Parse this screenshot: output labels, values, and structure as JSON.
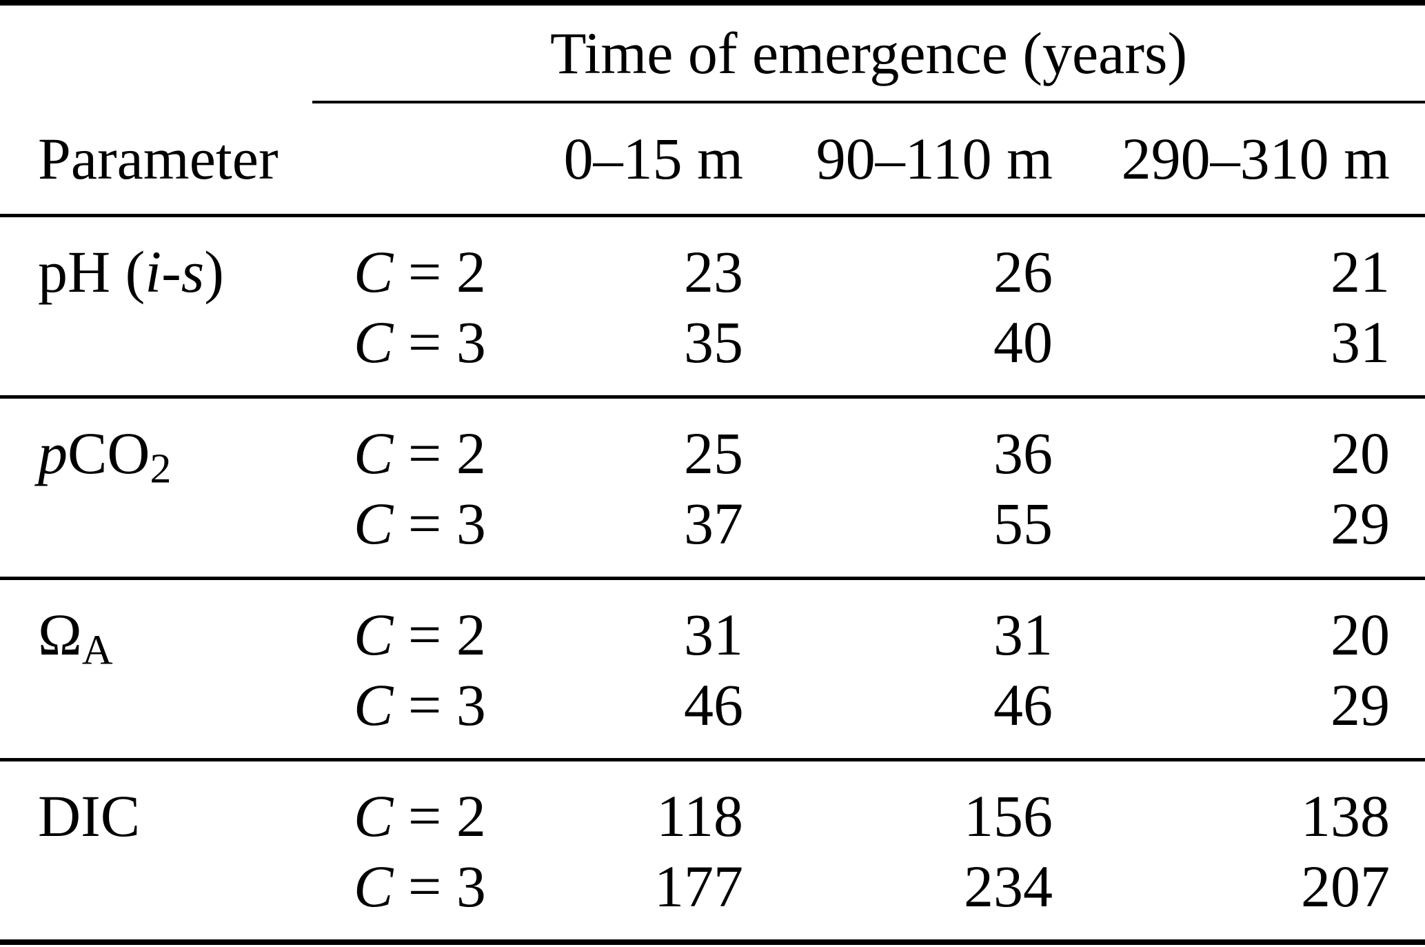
{
  "colors": {
    "background": "#ffffff",
    "text": "#000000",
    "rule": "#000000"
  },
  "table": {
    "span_header": "Time of emergence (years)",
    "parameter_header": "Parameter",
    "depth_headers": [
      "0–15 m",
      "90–110 m",
      "290–310 m"
    ],
    "groups": [
      {
        "param_parts": [
          "pH (",
          "i",
          "-",
          "s",
          ")"
        ],
        "rows": [
          {
            "c_var": "C",
            "c_rest": " = 2",
            "values": [
              "23",
              "26",
              "21"
            ]
          },
          {
            "c_var": "C",
            "c_rest": " = 3",
            "values": [
              "35",
              "40",
              "31"
            ]
          }
        ]
      },
      {
        "param_parts": [
          "p",
          "CO",
          "2"
        ],
        "rows": [
          {
            "c_var": "C",
            "c_rest": " = 2",
            "values": [
              "25",
              "36",
              "20"
            ]
          },
          {
            "c_var": "C",
            "c_rest": " = 3",
            "values": [
              "37",
              "55",
              "29"
            ]
          }
        ]
      },
      {
        "param_parts": [
          "Ω",
          "A"
        ],
        "rows": [
          {
            "c_var": "C",
            "c_rest": " = 2",
            "values": [
              "31",
              "31",
              "20"
            ]
          },
          {
            "c_var": "C",
            "c_rest": " = 3",
            "values": [
              "46",
              "46",
              "29"
            ]
          }
        ]
      },
      {
        "param_parts": [
          "DIC"
        ],
        "rows": [
          {
            "c_var": "C",
            "c_rest": " = 2",
            "values": [
              "118",
              "156",
              "138"
            ]
          },
          {
            "c_var": "C",
            "c_rest": " = 3",
            "values": [
              "177",
              "234",
              "207"
            ]
          }
        ]
      }
    ]
  },
  "chart_data": {
    "type": "table",
    "title": "Time of emergence (years)",
    "columns": [
      "Parameter",
      "",
      "0–15 m",
      "90–110 m",
      "290–310 m"
    ],
    "rows": [
      [
        "pH (i-s)",
        "C = 2",
        23,
        26,
        21
      ],
      [
        "pH (i-s)",
        "C = 3",
        35,
        40,
        31
      ],
      [
        "pCO₂",
        "C = 2",
        25,
        36,
        20
      ],
      [
        "pCO₂",
        "C = 3",
        37,
        55,
        29
      ],
      [
        "Ω_A",
        "C = 2",
        31,
        31,
        20
      ],
      [
        "Ω_A",
        "C = 3",
        46,
        46,
        29
      ],
      [
        "DIC",
        "C = 2",
        118,
        156,
        138
      ],
      [
        "DIC",
        "C = 3",
        177,
        234,
        207
      ]
    ]
  }
}
